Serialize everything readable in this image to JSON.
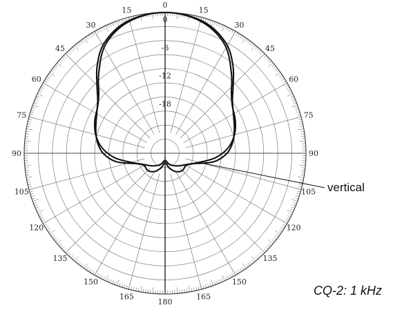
{
  "chart_data": {
    "type": "polar",
    "caption": "CQ-2: 1 kHz",
    "angle_tick_labels": [
      {
        "angle": 0,
        "text": "0"
      },
      {
        "angle": 15,
        "text": "15"
      },
      {
        "angle": 30,
        "text": "30"
      },
      {
        "angle": 45,
        "text": "45"
      },
      {
        "angle": 60,
        "text": "60"
      },
      {
        "angle": 75,
        "text": "75"
      },
      {
        "angle": 90,
        "text": "90"
      },
      {
        "angle": 105,
        "text": "105"
      },
      {
        "angle": 120,
        "text": "120"
      },
      {
        "angle": 135,
        "text": "135"
      },
      {
        "angle": 150,
        "text": "150"
      },
      {
        "angle": 165,
        "text": "165"
      },
      {
        "angle": 180,
        "text": "180"
      },
      {
        "angle": -15,
        "text": "15"
      },
      {
        "angle": -30,
        "text": "30"
      },
      {
        "angle": -45,
        "text": "45"
      },
      {
        "angle": -60,
        "text": "60"
      },
      {
        "angle": -75,
        "text": "75"
      },
      {
        "angle": -90,
        "text": "90"
      },
      {
        "angle": -105,
        "text": "105"
      },
      {
        "angle": -120,
        "text": "120"
      },
      {
        "angle": -135,
        "text": "135"
      },
      {
        "angle": -150,
        "text": "150"
      },
      {
        "angle": -165,
        "text": "165"
      }
    ],
    "radial_tick_labels": [
      {
        "value": 0,
        "text": "0"
      },
      {
        "value": -6,
        "text": "-6"
      },
      {
        "value": -12,
        "text": "-12"
      },
      {
        "value": -18,
        "text": "-18"
      }
    ],
    "radial_range_db": [
      -30,
      0
    ],
    "radial_ring_step_db": 3,
    "spoke_step_deg": 15,
    "series": [
      {
        "name": "vertical",
        "points": [
          {
            "angle": 0,
            "db": 0
          },
          {
            "angle": 10,
            "db": -0.3
          },
          {
            "angle": 20,
            "db": -1.3
          },
          {
            "angle": 30,
            "db": -3.5
          },
          {
            "angle": 38,
            "db": -6.5
          },
          {
            "angle": 45,
            "db": -9.5
          },
          {
            "angle": 52,
            "db": -11.8
          },
          {
            "angle": 60,
            "db": -13.2
          },
          {
            "angle": 70,
            "db": -14.3
          },
          {
            "angle": 80,
            "db": -15.3
          },
          {
            "angle": 90,
            "db": -16.8
          },
          {
            "angle": 100,
            "db": -19.5
          },
          {
            "angle": 110,
            "db": -23.5
          },
          {
            "angle": 120,
            "db": -24.8
          },
          {
            "angle": 135,
            "db": -24.8
          },
          {
            "angle": 150,
            "db": -25.5
          },
          {
            "angle": 165,
            "db": -26.8
          },
          {
            "angle": 180,
            "db": -28
          },
          {
            "angle": -165,
            "db": -26.8
          },
          {
            "angle": -150,
            "db": -25.5
          },
          {
            "angle": -135,
            "db": -24.8
          },
          {
            "angle": -120,
            "db": -24.8
          },
          {
            "angle": -110,
            "db": -23.5
          },
          {
            "angle": -100,
            "db": -19.5
          },
          {
            "angle": -90,
            "db": -16.8
          },
          {
            "angle": -80,
            "db": -15.3
          },
          {
            "angle": -70,
            "db": -14.3
          },
          {
            "angle": -60,
            "db": -13.2
          },
          {
            "angle": -52,
            "db": -11.8
          },
          {
            "angle": -45,
            "db": -9.5
          },
          {
            "angle": -38,
            "db": -6.5
          },
          {
            "angle": -30,
            "db": -3.5
          },
          {
            "angle": -20,
            "db": -1.3
          },
          {
            "angle": -10,
            "db": -0.3
          }
        ]
      },
      {
        "name": "",
        "points": [
          {
            "angle": 0,
            "db": 0
          },
          {
            "angle": 10,
            "db": -0.4
          },
          {
            "angle": 20,
            "db": -1.6
          },
          {
            "angle": 30,
            "db": -4
          },
          {
            "angle": 40,
            "db": -8
          },
          {
            "angle": 48,
            "db": -11
          },
          {
            "angle": 55,
            "db": -12.5
          },
          {
            "angle": 65,
            "db": -13.5
          },
          {
            "angle": 75,
            "db": -14.7
          },
          {
            "angle": 85,
            "db": -16.5
          },
          {
            "angle": 95,
            "db": -19.2
          },
          {
            "angle": 105,
            "db": -22.5
          },
          {
            "angle": 115,
            "db": -24.5
          },
          {
            "angle": 125,
            "db": -25.5
          },
          {
            "angle": 140,
            "db": -26.5
          },
          {
            "angle": 160,
            "db": -27.5
          },
          {
            "angle": 180,
            "db": -28.5
          },
          {
            "angle": -160,
            "db": -27.5
          },
          {
            "angle": -140,
            "db": -26.5
          },
          {
            "angle": -125,
            "db": -25.5
          },
          {
            "angle": -115,
            "db": -24.5
          },
          {
            "angle": -105,
            "db": -22.5
          },
          {
            "angle": -95,
            "db": -19.2
          },
          {
            "angle": -85,
            "db": -16.5
          },
          {
            "angle": -75,
            "db": -14.7
          },
          {
            "angle": -65,
            "db": -13.5
          },
          {
            "angle": -55,
            "db": -12.5
          },
          {
            "angle": -48,
            "db": -11
          },
          {
            "angle": -40,
            "db": -8
          },
          {
            "angle": -30,
            "db": -4
          },
          {
            "angle": -20,
            "db": -1.6
          },
          {
            "angle": -10,
            "db": -0.4
          }
        ]
      }
    ],
    "annotations": [
      {
        "text": "vertical",
        "points_to_angle": 105,
        "points_to_db": -22
      }
    ]
  }
}
